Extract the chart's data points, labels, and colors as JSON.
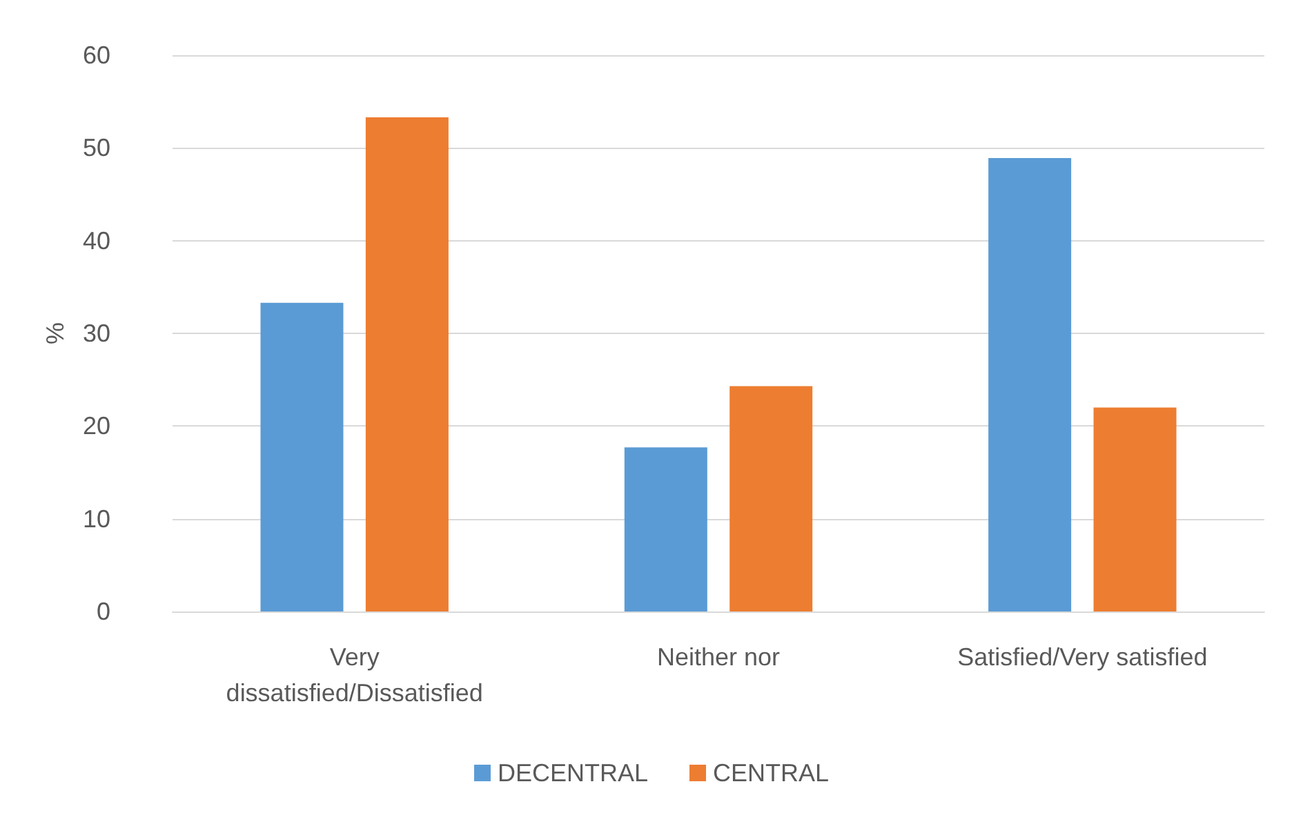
{
  "chart_data": {
    "type": "bar",
    "ylabel": "%",
    "categories": [
      "Very\ndissatisfied/Dissatisfied",
      "Neither nor",
      "Satisfied/Very satisfied"
    ],
    "series": [
      {
        "name": "DECENTRAL",
        "color": "#5b9bd5",
        "values": [
          33.3,
          17.7,
          48.9
        ]
      },
      {
        "name": "CENTRAL",
        "color": "#ed7d31",
        "values": [
          53.3,
          24.3,
          22.0
        ]
      }
    ],
    "ylim": [
      0,
      60
    ],
    "yticks": [
      0,
      10,
      20,
      30,
      40,
      50,
      60
    ],
    "grid": "y",
    "legend": "bottom"
  }
}
